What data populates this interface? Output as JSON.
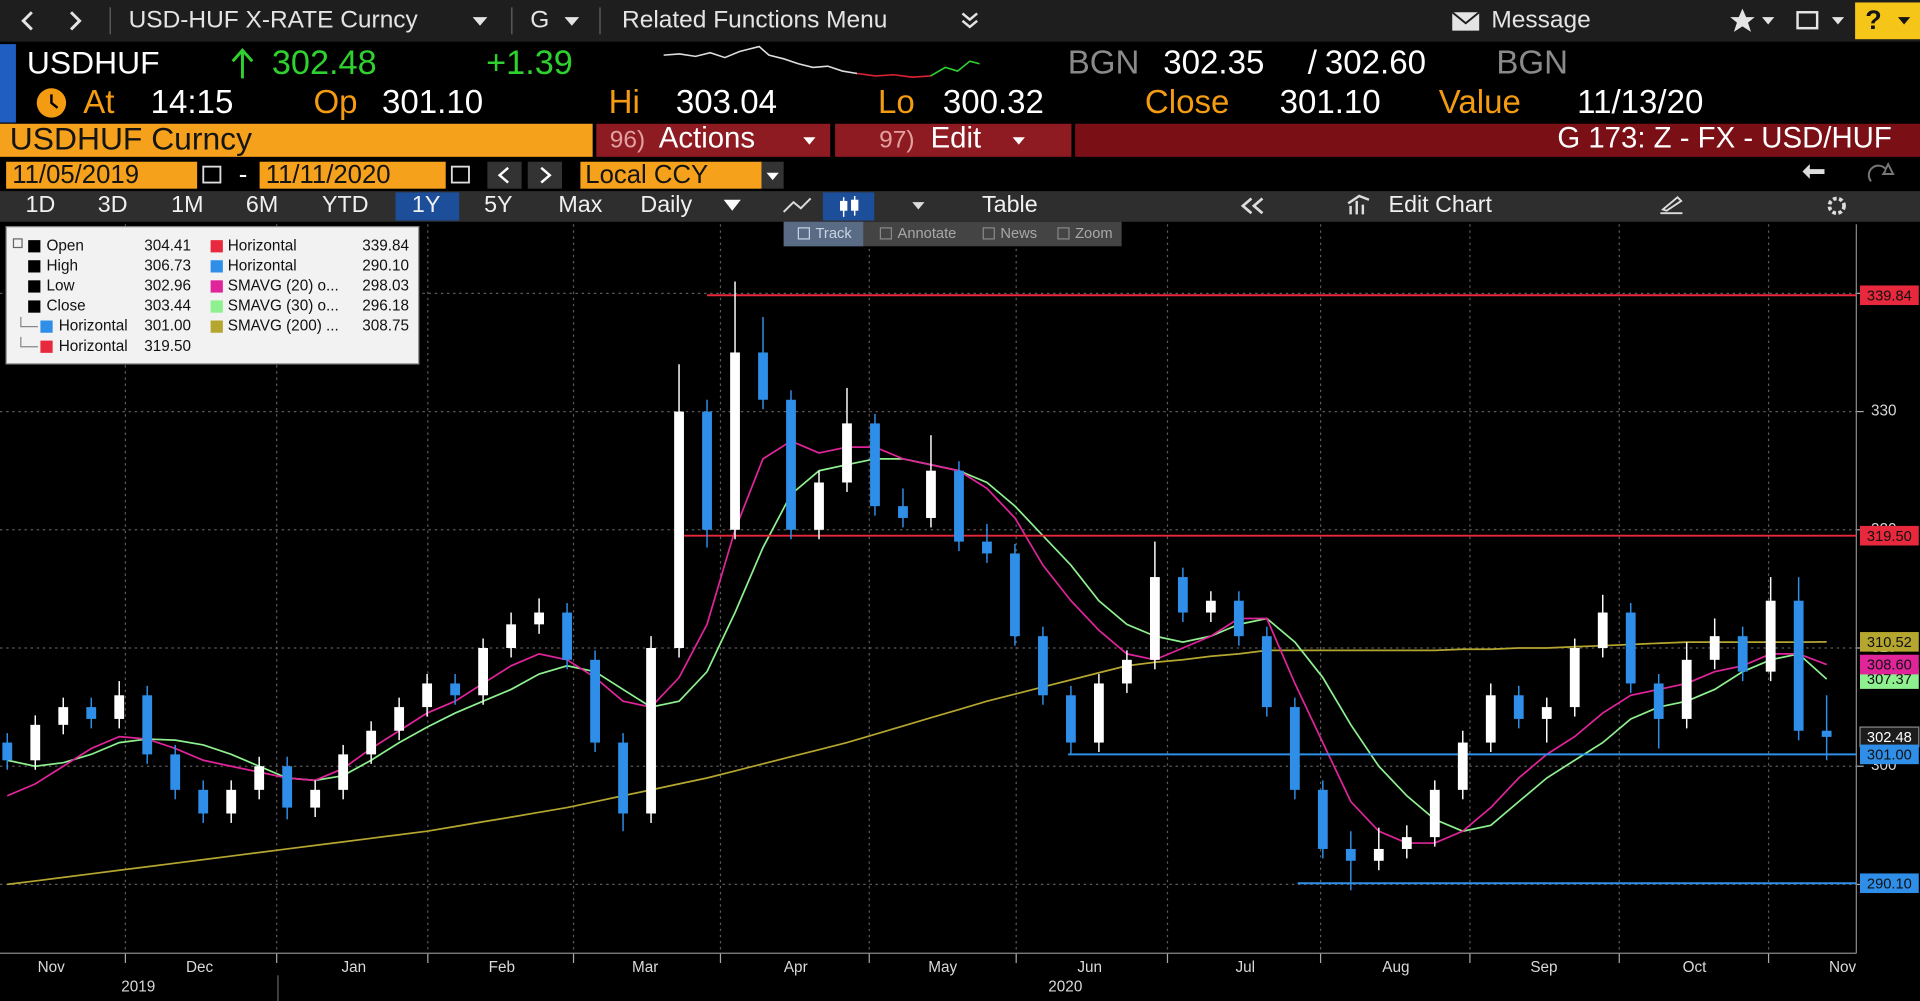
{
  "toolbar": {
    "security": "USD-HUF X-RATE Curncy",
    "menu_g": "G",
    "related": "Related Functions Menu",
    "message": "Message",
    "help": "?"
  },
  "quote": {
    "ticker": "USDHUF",
    "last": "302.48",
    "change": "+1.39",
    "source1": "BGN",
    "bid": "302.35",
    "slash": "/",
    "ask": "302.60",
    "source2": "BGN",
    "at_label": "At",
    "time": "14:15",
    "op_label": "Op",
    "open": "301.10",
    "hi_label": "Hi",
    "high": "303.04",
    "lo_label": "Lo",
    "low": "300.32",
    "close_label": "Close",
    "close": "301.10",
    "value_label": "Value",
    "value_date": "11/13/20"
  },
  "command_bar": {
    "security": "USDHUF Curncy",
    "actions_num": "96)",
    "actions": "Actions",
    "edit_num": "97)",
    "edit": "Edit",
    "page": "G 173: Z - FX - USD/HUF"
  },
  "date_bar": {
    "start": "11/05/2019",
    "sep": "-",
    "end": "11/11/2020",
    "currency": "Local CCY"
  },
  "tabs": [
    "1D",
    "3D",
    "1M",
    "6M",
    "YTD",
    "1Y",
    "5Y",
    "Max"
  ],
  "active_tab": "1Y",
  "period": "Daily",
  "table": "Table",
  "edit_chart": "Edit Chart",
  "chart_tools": [
    "Track",
    "Annotate",
    "News",
    "Zoom"
  ],
  "legend": [
    {
      "name": "Open",
      "value": "304.41",
      "color": "#000000"
    },
    {
      "name": "High",
      "value": "306.73",
      "color": "#000000"
    },
    {
      "name": "Low",
      "value": "302.96",
      "color": "#000000"
    },
    {
      "name": "Close",
      "value": "303.44",
      "color": "#000000"
    },
    {
      "name": "Horizontal",
      "value": "301.00",
      "color": "#2f8fe8"
    },
    {
      "name": "Horizontal",
      "value": "319.50",
      "color": "#e8283c"
    },
    {
      "name": "Horizontal",
      "value": "339.84",
      "color": "#e8283c"
    },
    {
      "name": "Horizontal",
      "value": "290.10",
      "color": "#2f8fe8"
    },
    {
      "name": "SMAVG (20)  o...",
      "value": "298.03",
      "color": "#e0249a"
    },
    {
      "name": "SMAVG (30)  o...",
      "value": "296.18",
      "color": "#8ef08e"
    },
    {
      "name": "SMAVG (200) ...",
      "value": "308.75",
      "color": "#b5a630"
    }
  ],
  "chart_data": {
    "type": "candlestick",
    "up_color": "#ffffff",
    "down_color": "#2f8fe8",
    "categories": [
      null,
      null,
      null,
      null,
      null,
      null,
      null,
      null,
      null,
      null,
      null,
      null,
      null,
      null,
      null,
      null,
      null,
      null,
      null,
      null,
      null,
      null,
      null,
      null,
      null,
      null,
      null,
      null,
      null,
      null,
      null,
      null,
      null,
      null,
      null,
      null,
      null,
      null,
      null,
      null,
      null,
      null,
      null,
      null,
      null,
      null,
      null,
      null,
      null,
      null,
      null,
      null,
      null,
      null,
      null,
      null,
      null,
      null,
      null,
      null,
      null,
      null,
      null,
      null,
      null,
      null
    ],
    "open": [
      302,
      300.5,
      303.5,
      305,
      304,
      306,
      301,
      298,
      296,
      298,
      300,
      296.5,
      298,
      301,
      303,
      305,
      307,
      306,
      310,
      312,
      313,
      309,
      302,
      296,
      310,
      330,
      320,
      335,
      331,
      320,
      324,
      329,
      322,
      321,
      325,
      319,
      318,
      311,
      306,
      302,
      307,
      309,
      316,
      313,
      314,
      311,
      305,
      298,
      293,
      292,
      293,
      294,
      298,
      302,
      306,
      304,
      305,
      310,
      313,
      307,
      304,
      309,
      311,
      308,
      314,
      303
    ],
    "high": [
      302.8,
      304.3,
      305.8,
      305.8,
      307.2,
      306.8,
      301.8,
      298.8,
      298.8,
      300.8,
      300.8,
      298.8,
      301.8,
      303.8,
      305.8,
      307.8,
      307.8,
      310.8,
      313,
      314.2,
      313.8,
      309.8,
      302.8,
      311,
      334,
      331,
      341,
      338,
      331.8,
      325,
      332,
      329.8,
      323.5,
      328,
      325.8,
      320.5,
      318.8,
      311.8,
      306.8,
      307.8,
      309.8,
      319,
      316.8,
      314.8,
      314.8,
      311.8,
      305.8,
      298.8,
      294.5,
      294.8,
      295,
      298.8,
      303,
      307,
      306.8,
      305.8,
      310.8,
      314.5,
      313.8,
      307.8,
      310.5,
      312.5,
      311.8,
      316,
      316,
      306
    ],
    "low": [
      299.7,
      299.7,
      302.7,
      303.2,
      303.2,
      300.2,
      297.2,
      295.2,
      295.2,
      297.2,
      295.5,
      295.7,
      297.2,
      300.2,
      302.2,
      304.2,
      305.2,
      305.2,
      309.2,
      311.2,
      308.2,
      301.2,
      294.5,
      295.2,
      309.2,
      318.5,
      319.2,
      330.2,
      319.2,
      319.2,
      323.2,
      321.2,
      320.2,
      320.2,
      318.2,
      317.2,
      310.2,
      305.2,
      301,
      301.2,
      306.2,
      308.2,
      312.2,
      312.2,
      310.2,
      304.2,
      297.2,
      292.2,
      289.5,
      291.2,
      292.2,
      293.2,
      297.2,
      301.2,
      303.2,
      302,
      304.2,
      309.2,
      306.2,
      301.5,
      303.2,
      308.2,
      307.2,
      307.2,
      302.2,
      300.5
    ],
    "close": [
      300.5,
      303.5,
      305,
      304,
      306,
      301,
      298,
      296,
      298,
      300,
      296.5,
      298,
      301,
      303,
      305,
      307,
      306,
      310,
      312,
      313,
      309,
      302,
      296,
      310,
      330,
      320,
      335,
      331,
      320,
      324,
      329,
      322,
      321,
      325,
      319,
      318,
      311,
      306,
      302,
      307,
      309,
      316,
      313,
      314,
      311,
      305,
      298,
      293,
      292,
      293,
      294,
      298,
      302,
      306,
      304,
      305,
      310,
      313,
      307,
      304,
      309,
      311,
      308,
      314,
      303,
      302.48
    ],
    "series": [
      {
        "color": "#b5a630",
        "values": [
          290,
          290.3,
          290.6,
          290.9,
          291.2,
          291.5,
          291.8,
          292.1,
          292.4,
          292.7,
          293,
          293.3,
          293.6,
          293.9,
          294.2,
          294.5,
          294.9,
          295.3,
          295.7,
          296.1,
          296.5,
          297,
          297.5,
          298,
          298.5,
          299,
          299.6,
          300.2,
          300.8,
          301.4,
          302,
          302.7,
          303.4,
          304.1,
          304.8,
          305.5,
          306.1,
          306.7,
          307.3,
          307.9,
          308.5,
          308.8,
          309,
          309.3,
          309.5,
          309.8,
          309.8,
          309.8,
          309.8,
          309.8,
          309.8,
          309.8,
          309.9,
          309.9,
          310,
          310,
          310.1,
          310.2,
          310.3,
          310.4,
          310.5,
          310.5,
          310.5,
          310.5,
          310.5,
          310.52
        ]
      },
      {
        "color": "#8ef08e",
        "values": [
          300.5,
          300,
          300.3,
          301,
          302,
          302.3,
          302.2,
          301.8,
          301,
          300,
          299,
          298.8,
          299.2,
          300.5,
          302,
          303.3,
          304.5,
          305.5,
          306.5,
          307.8,
          308.5,
          308,
          306.5,
          305,
          305.5,
          308,
          313,
          318.5,
          323,
          325,
          325.5,
          326,
          326,
          325.5,
          325,
          324,
          322,
          319.5,
          317,
          314,
          312,
          311,
          310.5,
          311,
          312,
          312.5,
          310.5,
          307.5,
          303.5,
          300,
          297.5,
          295.5,
          294.5,
          295,
          297,
          299,
          300.5,
          302,
          304,
          305,
          305.5,
          306.5,
          308,
          309,
          309.5,
          307.37
        ]
      },
      {
        "color": "#e0249a",
        "values": [
          297.5,
          298.5,
          300,
          301.5,
          302.5,
          302.3,
          301.5,
          300.5,
          300,
          299.5,
          299,
          298.8,
          299.8,
          301.5,
          303,
          304.5,
          305.5,
          307,
          308.5,
          309.5,
          309,
          307.5,
          305.5,
          305,
          307.5,
          312,
          320,
          326,
          327.5,
          326.5,
          327,
          327,
          326,
          325.5,
          325,
          323.5,
          321,
          317,
          314,
          311.5,
          309.5,
          309,
          310,
          311,
          312.5,
          312.5,
          307,
          302,
          297,
          294.5,
          293.5,
          293.5,
          294.5,
          296.5,
          299,
          301,
          302.5,
          304.5,
          306,
          306.5,
          307,
          308,
          308.5,
          309.5,
          309.5,
          308.6
        ]
      }
    ],
    "hlines": [
      {
        "value": 339.84,
        "color": "#e8283c",
        "start": 25.0
      },
      {
        "value": 319.5,
        "color": "#e8283c",
        "start": 24.0
      },
      {
        "value": 301.0,
        "color": "#2f8fe8",
        "start": 37.9
      },
      {
        "value": 290.1,
        "color": "#2f8fe8",
        "start": 46.1
      }
    ],
    "axis_tags": [
      {
        "value": 339.84,
        "label": "339.84",
        "color": "#e8283c"
      },
      {
        "value": 319.5,
        "label": "319.50",
        "color": "#e8283c"
      },
      {
        "value": 310.52,
        "label": "310.52",
        "color": "#b5a630"
      },
      {
        "value": 307.37,
        "label": "307.37",
        "color": "#8ef08e"
      },
      {
        "value": 308.6,
        "label": "308.60",
        "color": "#e0249a"
      },
      {
        "value": 302.48,
        "label": "302.48",
        "color": "#1c1c1c"
      },
      {
        "value": 301.0,
        "label": "301.00",
        "color": "#2f8fe8"
      },
      {
        "value": 290.1,
        "label": "290.10",
        "color": "#2f8fe8"
      }
    ],
    "xlim": [
      -0.26,
      66.06
    ],
    "xticks": [
      {
        "value": 1.57,
        "label": "Nov"
      },
      {
        "value": 6.87,
        "label": "Dec"
      },
      {
        "value": 12.38,
        "label": "Jan"
      },
      {
        "value": 17.67,
        "label": "Feb"
      },
      {
        "value": 22.79,
        "label": "Mar"
      },
      {
        "value": 28.17,
        "label": "Apr"
      },
      {
        "value": 33.42,
        "label": "May"
      },
      {
        "value": 38.67,
        "label": "Jun"
      },
      {
        "value": 44.23,
        "label": "Jul"
      },
      {
        "value": 49.61,
        "label": "Aug"
      },
      {
        "value": 54.9,
        "label": "Sep"
      },
      {
        "value": 60.28,
        "label": "Oct"
      },
      {
        "value": 65.57,
        "label": "Nov"
      }
    ],
    "year_labels": [
      {
        "value": 4.68,
        "label": "2019"
      },
      {
        "value": 37.8,
        "label": "2020"
      }
    ],
    "ylim": [
      284.18,
      345.85
    ],
    "yticks": [
      290,
      300,
      310,
      320,
      330,
      340
    ],
    "grid": true
  }
}
